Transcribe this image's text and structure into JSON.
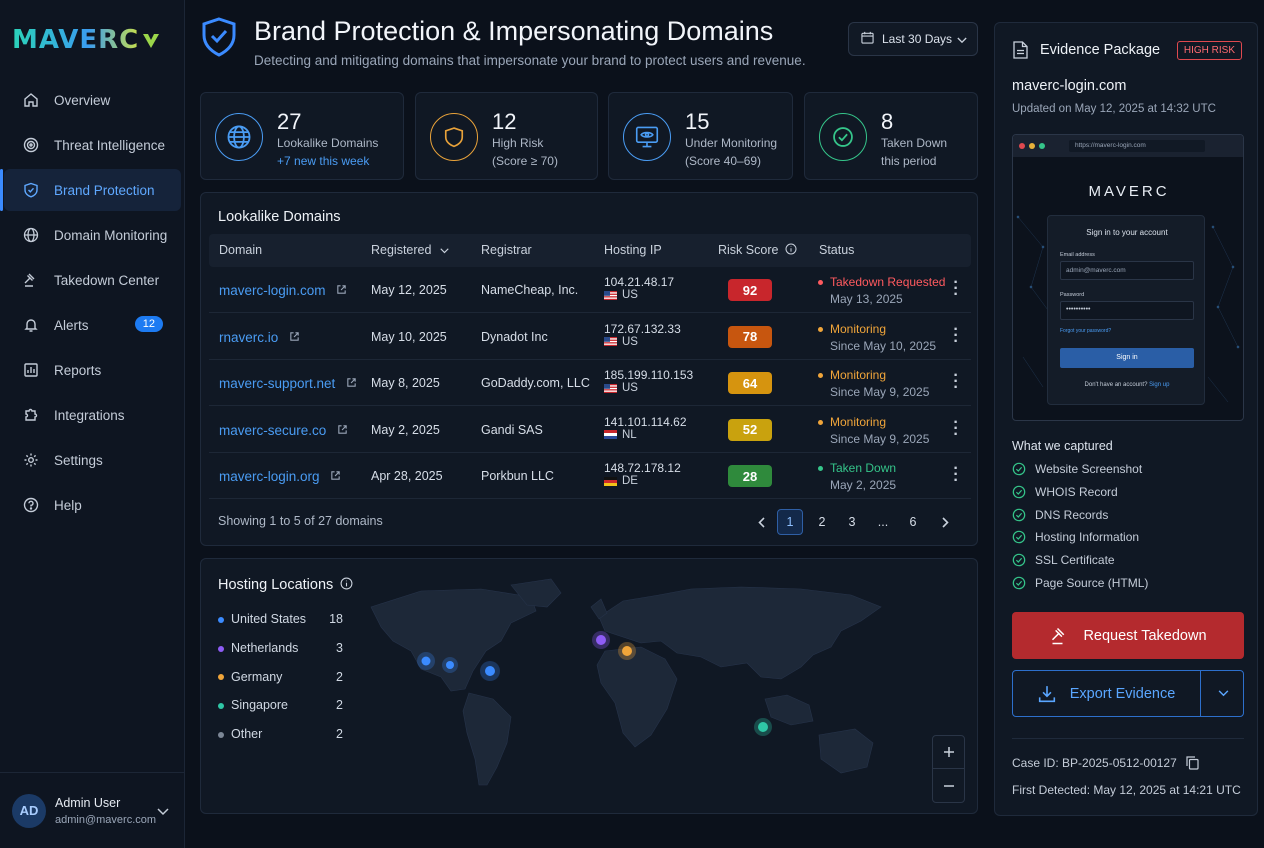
{
  "sidebar": {
    "logo": "MAVERC",
    "items": [
      {
        "label": "Overview"
      },
      {
        "label": "Threat Intelligence"
      },
      {
        "label": "Brand Protection"
      },
      {
        "label": "Domain Monitoring"
      },
      {
        "label": "Takedown Center"
      },
      {
        "label": "Alerts",
        "badge": "12"
      },
      {
        "label": "Reports"
      },
      {
        "label": "Integrations"
      },
      {
        "label": "Settings"
      },
      {
        "label": "Help"
      }
    ],
    "active_index": 2,
    "user": {
      "initials": "AD",
      "name": "Admin User",
      "email": "admin@maverc.com"
    }
  },
  "header": {
    "title": "Brand Protection & Impersonating Domains",
    "subtitle": "Detecting and mitigating domains that impersonate your brand to protect users and revenue.",
    "date_range": "Last 30 Days"
  },
  "kpis": [
    {
      "value": "27",
      "label": "Lookalike Domains",
      "sub": "+7 new this week",
      "icon": "globe-icon",
      "color": "#4a9cf3"
    },
    {
      "value": "12",
      "label": "High Risk",
      "sub": "(Score ≥ 70)",
      "icon": "shield-icon",
      "color": "#e8a23a"
    },
    {
      "value": "15",
      "label": "Under Monitoring",
      "sub": "(Score 40–69)",
      "icon": "monitor-eye-icon",
      "color": "#4a9cf3"
    },
    {
      "value": "8",
      "label": "Taken Down",
      "sub": "this period",
      "icon": "check-circle-icon",
      "color": "#35c58a"
    }
  ],
  "table": {
    "title": "Lookalike Domains",
    "columns": [
      "Domain",
      "Registered",
      "Registrar",
      "Hosting IP",
      "Risk Score",
      "Status"
    ],
    "rows": [
      {
        "domain": "maverc-login.com",
        "registered": "May 12, 2025",
        "registrar": "NameCheap, Inc.",
        "ip": "104.21.48.17",
        "country": "US",
        "score": "92",
        "score_color": "#c8262c",
        "status": "Takedown Requested",
        "status_color": "#ff5a5f",
        "status_date": "May 13, 2025"
      },
      {
        "domain": "rnaverc.io",
        "registered": "May 10, 2025",
        "registrar": "Dynadot Inc",
        "ip": "172.67.132.33",
        "country": "US",
        "score": "78",
        "score_color": "#c7560f",
        "status": "Monitoring",
        "status_color": "#f0a53a",
        "status_date": "Since May 10, 2025"
      },
      {
        "domain": "maverc-support.net",
        "registered": "May 8, 2025",
        "registrar": "GoDaddy.com, LLC",
        "ip": "185.199.110.153",
        "country": "US",
        "score": "64",
        "score_color": "#d6940f",
        "status": "Monitoring",
        "status_color": "#f0a53a",
        "status_date": "Since May 9, 2025"
      },
      {
        "domain": "maverc-secure.co",
        "registered": "May 2, 2025",
        "registrar": "Gandi SAS",
        "ip": "141.101.114.62",
        "country": "NL",
        "score": "52",
        "score_color": "#c9a20e",
        "status": "Monitoring",
        "status_color": "#f0a53a",
        "status_date": "Since May 9, 2025"
      },
      {
        "domain": "maverc-login.org",
        "registered": "Apr 28, 2025",
        "registrar": "Porkbun LLC",
        "ip": "148.72.178.12",
        "country": "DE",
        "score": "28",
        "score_color": "#2f8a3c",
        "status": "Taken Down",
        "status_color": "#35c58a",
        "status_date": "May 2, 2025"
      }
    ],
    "footer": "Showing 1 to 5 of 27 domains",
    "pages": [
      "1",
      "2",
      "3",
      "...",
      "6"
    ],
    "current_page": "1"
  },
  "hosting": {
    "title": "Hosting Locations",
    "locations": [
      {
        "name": "United States",
        "count": "18",
        "color": "#3b8bff"
      },
      {
        "name": "Netherlands",
        "count": "3",
        "color": "#8e5cf5"
      },
      {
        "name": "Germany",
        "count": "2",
        "color": "#f0a53a"
      },
      {
        "name": "Singapore",
        "count": "2",
        "color": "#2fc7a6"
      },
      {
        "name": "Other",
        "count": "2",
        "color": "#7c8796"
      }
    ]
  },
  "evidence": {
    "title": "Evidence Package",
    "risk_badge": "HIGH RISK",
    "domain": "maverc-login.com",
    "updated": "Updated on May 12, 2025 at 14:32 UTC",
    "screenshot": {
      "url": "https://maverc-login.com",
      "brand": "MAVERC",
      "heading": "Sign in to your account",
      "email_label": "Email address",
      "email_value": "admin@maverc.com",
      "password_label": "Password",
      "password_value": "••••••••••",
      "forgot": "Forgot your password?",
      "button": "Sign in",
      "footer_text": "Don't have an account?",
      "footer_link": "Sign up"
    },
    "captured_title": "What we captured",
    "captured": [
      "Website Screenshot",
      "WHOIS Record",
      "DNS Records",
      "Hosting Information",
      "SSL Certificate",
      "Page Source (HTML)"
    ],
    "request_btn": "Request Takedown",
    "export_btn": "Export Evidence",
    "case_id": "Case ID: BP-2025-0512-00127",
    "first_detected": "First Detected: May 12, 2025 at 14:21 UTC"
  }
}
